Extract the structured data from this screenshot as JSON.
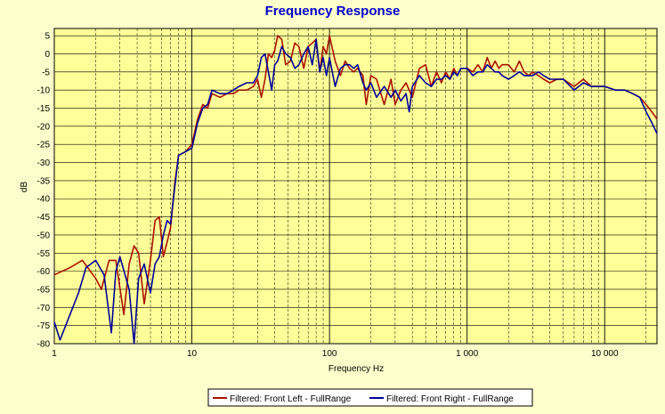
{
  "chart_data": {
    "type": "line",
    "title": "Frequency Response",
    "xlabel": "Frequency Hz",
    "ylabel": "dB",
    "xscale": "log",
    "xlim": [
      1,
      24000
    ],
    "ylim": [
      -80,
      7
    ],
    "grid": true,
    "legend_position": "bottom-center",
    "x_tick_labels": [
      {
        "value": 1,
        "label": "1"
      },
      {
        "value": 10,
        "label": "10"
      },
      {
        "value": 100,
        "label": "100"
      },
      {
        "value": 1000,
        "label": "1 000"
      },
      {
        "value": 10000,
        "label": "10 000"
      }
    ],
    "y_ticks": [
      5,
      0,
      -5,
      -10,
      -15,
      -20,
      -25,
      -30,
      -35,
      -40,
      -45,
      -50,
      -55,
      -60,
      -65,
      -70,
      -75,
      -80
    ],
    "series": [
      {
        "name": "Filtered: Front Left - FullRange",
        "color": "#aa1100",
        "points": [
          [
            1,
            -61
          ],
          [
            1.3,
            -59
          ],
          [
            1.6,
            -57
          ],
          [
            2,
            -62
          ],
          [
            2.2,
            -65
          ],
          [
            2.5,
            -57
          ],
          [
            2.8,
            -57
          ],
          [
            3.2,
            -72
          ],
          [
            3.5,
            -58
          ],
          [
            3.8,
            -53
          ],
          [
            4.1,
            -55
          ],
          [
            4.5,
            -69
          ],
          [
            5.0,
            -57
          ],
          [
            5.4,
            -46
          ],
          [
            5.8,
            -45
          ],
          [
            6.2,
            -56
          ],
          [
            6.6,
            -52
          ],
          [
            7.0,
            -48
          ],
          [
            7.5,
            -36
          ],
          [
            8.0,
            -28
          ],
          [
            9.0,
            -27
          ],
          [
            10,
            -25
          ],
          [
            11,
            -18
          ],
          [
            12,
            -14
          ],
          [
            13,
            -15
          ],
          [
            14,
            -11
          ],
          [
            16,
            -12
          ],
          [
            18,
            -11
          ],
          [
            20,
            -11
          ],
          [
            22,
            -10
          ],
          [
            25,
            -10
          ],
          [
            28,
            -9
          ],
          [
            30,
            -7
          ],
          [
            32,
            -12
          ],
          [
            34,
            -7
          ],
          [
            36,
            0
          ],
          [
            38,
            -1
          ],
          [
            40,
            1
          ],
          [
            42,
            5
          ],
          [
            45,
            4
          ],
          [
            48,
            -3
          ],
          [
            52,
            -2
          ],
          [
            56,
            3
          ],
          [
            60,
            2
          ],
          [
            65,
            -4
          ],
          [
            70,
            2
          ],
          [
            75,
            3
          ],
          [
            80,
            4
          ],
          [
            85,
            -5
          ],
          [
            90,
            2
          ],
          [
            95,
            0
          ],
          [
            100,
            5
          ],
          [
            110,
            -2
          ],
          [
            120,
            -6
          ],
          [
            130,
            -2
          ],
          [
            140,
            -4
          ],
          [
            150,
            -5
          ],
          [
            160,
            -4
          ],
          [
            175,
            -6
          ],
          [
            185,
            -14
          ],
          [
            200,
            -6
          ],
          [
            220,
            -7
          ],
          [
            250,
            -14
          ],
          [
            280,
            -7
          ],
          [
            300,
            -14
          ],
          [
            330,
            -10
          ],
          [
            360,
            -8
          ],
          [
            400,
            -12
          ],
          [
            450,
            -4
          ],
          [
            500,
            -3
          ],
          [
            550,
            -9
          ],
          [
            600,
            -5
          ],
          [
            650,
            -8
          ],
          [
            700,
            -5
          ],
          [
            750,
            -7
          ],
          [
            800,
            -4
          ],
          [
            850,
            -6
          ],
          [
            900,
            -4
          ],
          [
            1000,
            -4
          ],
          [
            1100,
            -5
          ],
          [
            1200,
            -3
          ],
          [
            1300,
            -5
          ],
          [
            1400,
            -1
          ],
          [
            1500,
            -4
          ],
          [
            1600,
            -2
          ],
          [
            1700,
            -4
          ],
          [
            1800,
            -3
          ],
          [
            2000,
            -3
          ],
          [
            2200,
            -5
          ],
          [
            2400,
            -2
          ],
          [
            2600,
            -5
          ],
          [
            2800,
            -6
          ],
          [
            3000,
            -5
          ],
          [
            3300,
            -6
          ],
          [
            3600,
            -7
          ],
          [
            4000,
            -8
          ],
          [
            4500,
            -7
          ],
          [
            5000,
            -7
          ],
          [
            6000,
            -9
          ],
          [
            7000,
            -7
          ],
          [
            8000,
            -9
          ],
          [
            9000,
            -9
          ],
          [
            10000,
            -9
          ],
          [
            12000,
            -10
          ],
          [
            14000,
            -10
          ],
          [
            16000,
            -11
          ],
          [
            18000,
            -12
          ],
          [
            20000,
            -14
          ],
          [
            22000,
            -16
          ],
          [
            24000,
            -18
          ]
        ]
      },
      {
        "name": "Filtered: Front Right - FullRange",
        "color": "#000099",
        "points": [
          [
            1,
            -74
          ],
          [
            1.1,
            -79
          ],
          [
            1.3,
            -72
          ],
          [
            1.5,
            -66
          ],
          [
            1.7,
            -59
          ],
          [
            2.0,
            -57
          ],
          [
            2.3,
            -61
          ],
          [
            2.6,
            -77
          ],
          [
            2.8,
            -60
          ],
          [
            3.0,
            -56
          ],
          [
            3.5,
            -65
          ],
          [
            3.8,
            -80
          ],
          [
            4.1,
            -62
          ],
          [
            4.5,
            -58
          ],
          [
            5.0,
            -66
          ],
          [
            5.4,
            -58
          ],
          [
            5.8,
            -56
          ],
          [
            6.2,
            -50
          ],
          [
            6.6,
            -46
          ],
          [
            7.0,
            -47
          ],
          [
            7.5,
            -37
          ],
          [
            8.0,
            -28
          ],
          [
            9.0,
            -27
          ],
          [
            10,
            -26
          ],
          [
            11,
            -19
          ],
          [
            12,
            -15
          ],
          [
            13,
            -14
          ],
          [
            14,
            -10
          ],
          [
            16,
            -11
          ],
          [
            18,
            -11
          ],
          [
            20,
            -10
          ],
          [
            22,
            -9
          ],
          [
            25,
            -8
          ],
          [
            28,
            -8
          ],
          [
            30,
            -6
          ],
          [
            32,
            -1
          ],
          [
            34,
            0
          ],
          [
            36,
            -5
          ],
          [
            38,
            -10
          ],
          [
            40,
            -3
          ],
          [
            42,
            -2
          ],
          [
            45,
            2
          ],
          [
            48,
            0
          ],
          [
            52,
            -1
          ],
          [
            56,
            -4
          ],
          [
            60,
            -3
          ],
          [
            65,
            0
          ],
          [
            70,
            2
          ],
          [
            75,
            -3
          ],
          [
            80,
            4
          ],
          [
            85,
            -5
          ],
          [
            90,
            -1
          ],
          [
            95,
            -6
          ],
          [
            100,
            -1
          ],
          [
            110,
            -9
          ],
          [
            120,
            -4
          ],
          [
            130,
            -3
          ],
          [
            140,
            -3
          ],
          [
            150,
            -4
          ],
          [
            160,
            -3
          ],
          [
            175,
            -8
          ],
          [
            185,
            -10
          ],
          [
            200,
            -8
          ],
          [
            220,
            -12
          ],
          [
            250,
            -9
          ],
          [
            280,
            -12
          ],
          [
            300,
            -10
          ],
          [
            330,
            -13
          ],
          [
            360,
            -11
          ],
          [
            380,
            -16
          ],
          [
            400,
            -9
          ],
          [
            450,
            -6
          ],
          [
            500,
            -8
          ],
          [
            550,
            -9
          ],
          [
            600,
            -7
          ],
          [
            650,
            -7
          ],
          [
            700,
            -6
          ],
          [
            750,
            -7
          ],
          [
            800,
            -5
          ],
          [
            850,
            -6
          ],
          [
            900,
            -4
          ],
          [
            1000,
            -4
          ],
          [
            1100,
            -6
          ],
          [
            1200,
            -5
          ],
          [
            1300,
            -5
          ],
          [
            1400,
            -3
          ],
          [
            1500,
            -4
          ],
          [
            1600,
            -5
          ],
          [
            1700,
            -5
          ],
          [
            1800,
            -6
          ],
          [
            2000,
            -7
          ],
          [
            2200,
            -6
          ],
          [
            2400,
            -5
          ],
          [
            2600,
            -6
          ],
          [
            2800,
            -6
          ],
          [
            3000,
            -6
          ],
          [
            3300,
            -5
          ],
          [
            3600,
            -6
          ],
          [
            4000,
            -7
          ],
          [
            4500,
            -7
          ],
          [
            5000,
            -7
          ],
          [
            6000,
            -10
          ],
          [
            7000,
            -8
          ],
          [
            8000,
            -9
          ],
          [
            9000,
            -9
          ],
          [
            10000,
            -9
          ],
          [
            12000,
            -10
          ],
          [
            14000,
            -10
          ],
          [
            16000,
            -11
          ],
          [
            18000,
            -12
          ],
          [
            20000,
            -16
          ],
          [
            22000,
            -19
          ],
          [
            24000,
            -22
          ]
        ]
      }
    ]
  }
}
